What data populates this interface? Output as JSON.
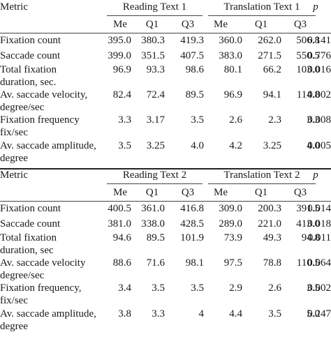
{
  "tables": [
    {
      "metric_header": "Metric",
      "group1": "Reading Text 1",
      "group2": "Translation Text 1",
      "p_header": "p",
      "sub": [
        "Me",
        "Q1",
        "Q3",
        "Me",
        "Q1",
        "Q3"
      ],
      "rows": [
        {
          "label": [
            "Fixation count"
          ],
          "values": [
            "395.0",
            "380.3",
            "419.3",
            "360.0",
            "262.0",
            "506.8"
          ],
          "p": "0.141"
        },
        {
          "label": [
            "Saccade count"
          ],
          "values": [
            "399.0",
            "351.5",
            "407.5",
            "383.0",
            "271.5",
            "550.5"
          ],
          "p": "0.776"
        },
        {
          "label": [
            "Total fixation",
            "duration, sec."
          ],
          "values": [
            "96.9",
            "93.3",
            "98.6",
            "80.1",
            "66.2",
            "103.0"
          ],
          "p": "0.016"
        },
        {
          "label": [
            "Av. saccade velocity,",
            "degree/sec"
          ],
          "values": [
            "82.4",
            "72.4",
            "89.5",
            "96.9",
            "94.1",
            "114.8"
          ],
          "p": "0.002"
        },
        {
          "label": [
            "Fixation frequency",
            "fix/sec"
          ],
          "values": [
            "3.3",
            "3.17",
            "3.5",
            "2.6",
            "2.3",
            "3.3"
          ],
          "p": "0.008"
        },
        {
          "label": [
            "Av. saccade amplitude,",
            "degree"
          ],
          "values": [
            "3.5",
            "3.25",
            "4.0",
            "4.2",
            "3.25",
            "4.0"
          ],
          "p": "0.005"
        }
      ]
    },
    {
      "metric_header": "Metric",
      "group1": "Reading Text 2",
      "group2": "Translation Text 2",
      "p_header": "p",
      "sub": [
        "Me",
        "Q1",
        "Q3",
        "Me",
        "Q1",
        "Q3"
      ],
      "rows": [
        {
          "label": [
            "Fixation count"
          ],
          "values": [
            "400.5",
            "361.0",
            "416.8",
            "309.0",
            "200.3",
            "391.5"
          ],
          "p": "0.014"
        },
        {
          "label": [
            "Saccade count"
          ],
          "values": [
            "381.0",
            "338.0",
            "428.5",
            "289.0",
            "221.0",
            "413.0"
          ],
          "p": "0.018"
        },
        {
          "label": [
            "Total fixation",
            "duration, sec"
          ],
          "values": [
            "94.6",
            "89.5",
            "101.9",
            "73.9",
            "49.3",
            "94.8"
          ],
          "p": "0.011"
        },
        {
          "label": [
            "Av. saccade velocity",
            "degree/sec"
          ],
          "values": [
            "88.6",
            "71.6",
            "98.1",
            "97.5",
            "78.8",
            "110.5"
          ],
          "p": "0.064"
        },
        {
          "label": [
            "Fixation frequency,",
            "fix/sec"
          ],
          "values": [
            "3.4",
            "3.5",
            "3.5",
            "2.9",
            "2.6",
            "3.5"
          ],
          "p": "0.002"
        },
        {
          "label": [
            "Av. saccade amplitude,",
            "degree"
          ],
          "values": [
            "3.8",
            "3.3",
            "4",
            "4.4",
            "3.5",
            "5.0"
          ],
          "p": "0.247"
        }
      ]
    }
  ]
}
